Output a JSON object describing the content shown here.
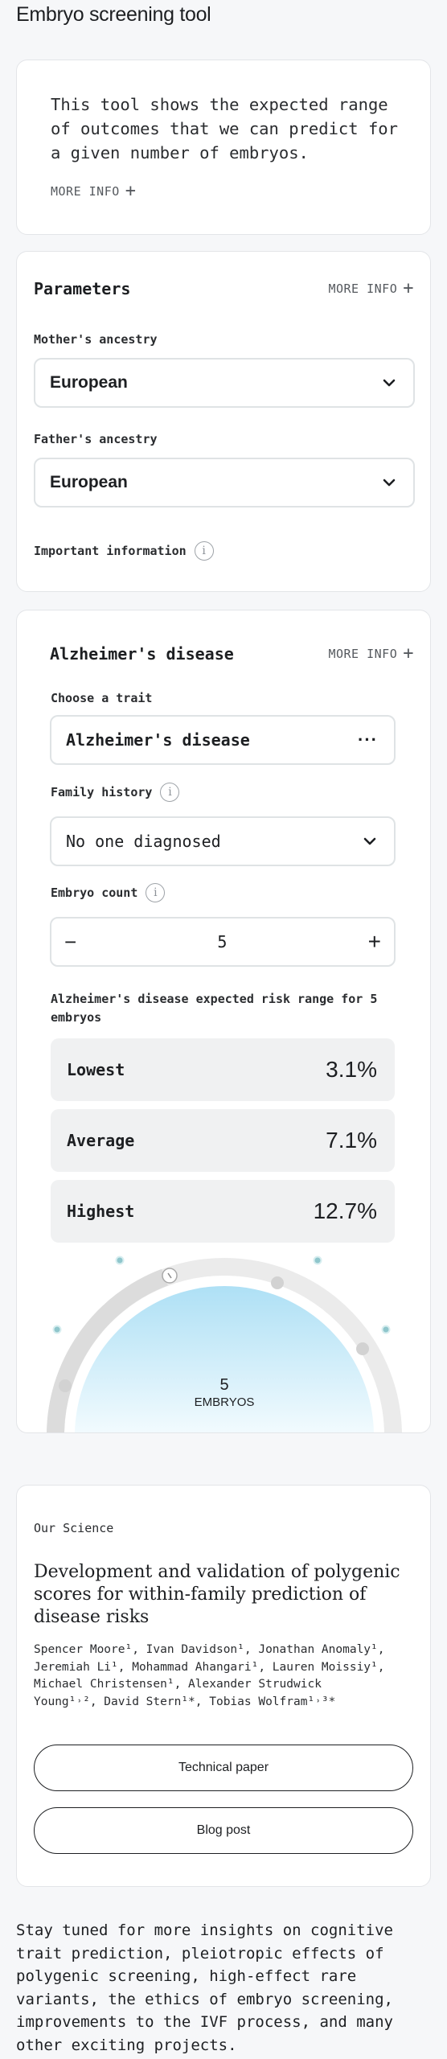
{
  "app_title": "Embryo screening tool",
  "intro": {
    "text": "This tool shows the expected range of outcomes that we can predict for a given number of embryos.",
    "more_info": "MORE INFO"
  },
  "parameters": {
    "title": "Parameters",
    "more_info": "MORE INFO",
    "mother_label": "Mother's ancestry",
    "mother_value": "European",
    "father_label": "Father's ancestry",
    "father_value": "European",
    "important": "Important information"
  },
  "trait_card": {
    "title": "Alzheimer's disease",
    "more_info": "MORE INFO",
    "choose_label": "Choose a trait",
    "trait_value": "Alzheimer's disease",
    "family_label": "Family history",
    "family_value": "No one diagnosed",
    "count_label": "Embryo count",
    "count_value": "5",
    "minus": "−",
    "plus": "+",
    "range_label": "Alzheimer's disease expected risk range for 5 embryos",
    "risks": [
      {
        "label": "Lowest",
        "value": "3.1%"
      },
      {
        "label": "Average",
        "value": "7.1%"
      },
      {
        "label": "Highest",
        "value": "12.7%"
      }
    ],
    "gauge_number": "5",
    "gauge_caption": "EMBRYOS",
    "gauge_fraction": 0.5
  },
  "science": {
    "eyebrow": "Our Science",
    "title": "Development and validation of polygenic scores for within-family prediction of disease risks",
    "authors_line1": "Spencer Moore¹, Ivan Davidson¹, Jonathan Anomaly¹,",
    "authors_line2": "Jeremiah Li¹, Mohammad Ahangari¹, Lauren Moissiy¹,",
    "authors_line3": "Michael Christensen¹, Alexander Strudwick",
    "authors_line4": "Young¹˒², David Stern¹*, Tobias Wolfram¹˒³*",
    "technical_button": "Technical paper",
    "blog_button": "Blog post"
  },
  "footer": {
    "text": "Stay tuned for more insights on cognitive trait prediction, pleiotropic effects of polygenic screening, high-effect rare variants, the ethics of embryo screening, improvements to the IVF process, and many other exciting projects."
  },
  "colors": {
    "accent_blue": "#b6e3f6",
    "dot_teal": "#8fc6cc"
  }
}
